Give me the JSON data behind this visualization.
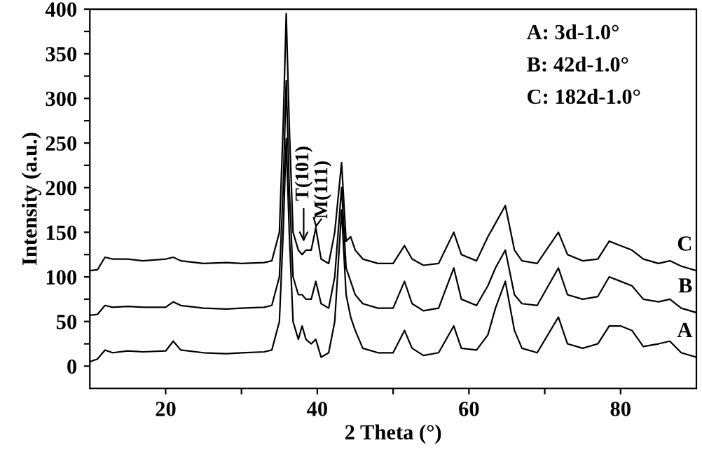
{
  "chart_data": {
    "type": "line",
    "xlabel": "2 Theta (°)",
    "ylabel": "Intensity (a.u.)",
    "xlim": [
      10,
      90
    ],
    "ylim": [
      -25,
      400
    ],
    "xticks": [
      20,
      40,
      60,
      80,
      {
        "value": 30,
        "label": null
      },
      {
        "value": 50,
        "label": null
      },
      {
        "value": 70,
        "label": null
      }
    ],
    "yticks": [
      0,
      50,
      100,
      150,
      200,
      250,
      300,
      350,
      400,
      {
        "value": 25,
        "label": null
      },
      {
        "value": 75,
        "label": null
      },
      {
        "value": 125,
        "label": null
      },
      {
        "value": 175,
        "label": null
      },
      {
        "value": 225,
        "label": null
      },
      {
        "value": 275,
        "label": null
      },
      {
        "value": 325,
        "label": null
      },
      {
        "value": 375,
        "label": null
      }
    ],
    "grid": false,
    "legend": false,
    "marker": "none",
    "line_style": "solid",
    "x": [
      10,
      11,
      12,
      13,
      15,
      17,
      20,
      21,
      22,
      25,
      28,
      30,
      33,
      34,
      35,
      35.5,
      35.9,
      36.3,
      36.8,
      37.5,
      38,
      38.5,
      39.2,
      39.8,
      40.5,
      41.5,
      42.3,
      43.2,
      43.8,
      44.4,
      45,
      46,
      48,
      50,
      51.5,
      52.5,
      54,
      56,
      58,
      59,
      61,
      62.5,
      63.5,
      64.8,
      66,
      67,
      69,
      71.8,
      73,
      75,
      77,
      78.5,
      80,
      81.5,
      83,
      85,
      86.5,
      88,
      90
    ],
    "series": [
      {
        "name": "A",
        "color": "#000000",
        "values": [
          5,
          8,
          18,
          15,
          17,
          16,
          17,
          28,
          18,
          15,
          14,
          15,
          16,
          18,
          50,
          150,
          255,
          150,
          50,
          30,
          45,
          30,
          25,
          30,
          10,
          15,
          50,
          175,
          80,
          55,
          40,
          20,
          15,
          15,
          40,
          20,
          12,
          15,
          45,
          20,
          18,
          35,
          65,
          95,
          40,
          20,
          15,
          55,
          25,
          20,
          25,
          45,
          45,
          40,
          22,
          25,
          28,
          15,
          10
        ]
      },
      {
        "name": "B",
        "color": "#000000",
        "values": [
          57,
          58,
          68,
          66,
          67,
          66,
          66,
          72,
          68,
          65,
          64,
          65,
          66,
          68,
          100,
          200,
          320,
          200,
          100,
          80,
          80,
          75,
          75,
          95,
          70,
          65,
          100,
          200,
          110,
          95,
          80,
          70,
          65,
          65,
          95,
          70,
          62,
          65,
          110,
          75,
          68,
          90,
          110,
          130,
          80,
          70,
          68,
          110,
          80,
          75,
          78,
          100,
          95,
          90,
          75,
          72,
          75,
          65,
          60
        ]
      },
      {
        "name": "C",
        "color": "#000000",
        "values": [
          107,
          108,
          122,
          120,
          120,
          118,
          120,
          122,
          118,
          115,
          116,
          115,
          116,
          118,
          150,
          270,
          395,
          270,
          150,
          130,
          125,
          130,
          130,
          155,
          120,
          115,
          150,
          228,
          140,
          145,
          130,
          120,
          115,
          115,
          135,
          120,
          113,
          115,
          150,
          125,
          118,
          145,
          160,
          180,
          130,
          118,
          115,
          150,
          125,
          118,
          120,
          140,
          135,
          130,
          120,
          115,
          118,
          112,
          107
        ]
      }
    ],
    "annotations": [
      "A: 3d-1.0°",
      "B: 42d-1.0°",
      "C: 182d-1.0°",
      {
        "text": "T(101)",
        "x": 38.2,
        "y": 135
      },
      {
        "text": "M(111)",
        "x": 39.8,
        "y": 155
      }
    ]
  }
}
